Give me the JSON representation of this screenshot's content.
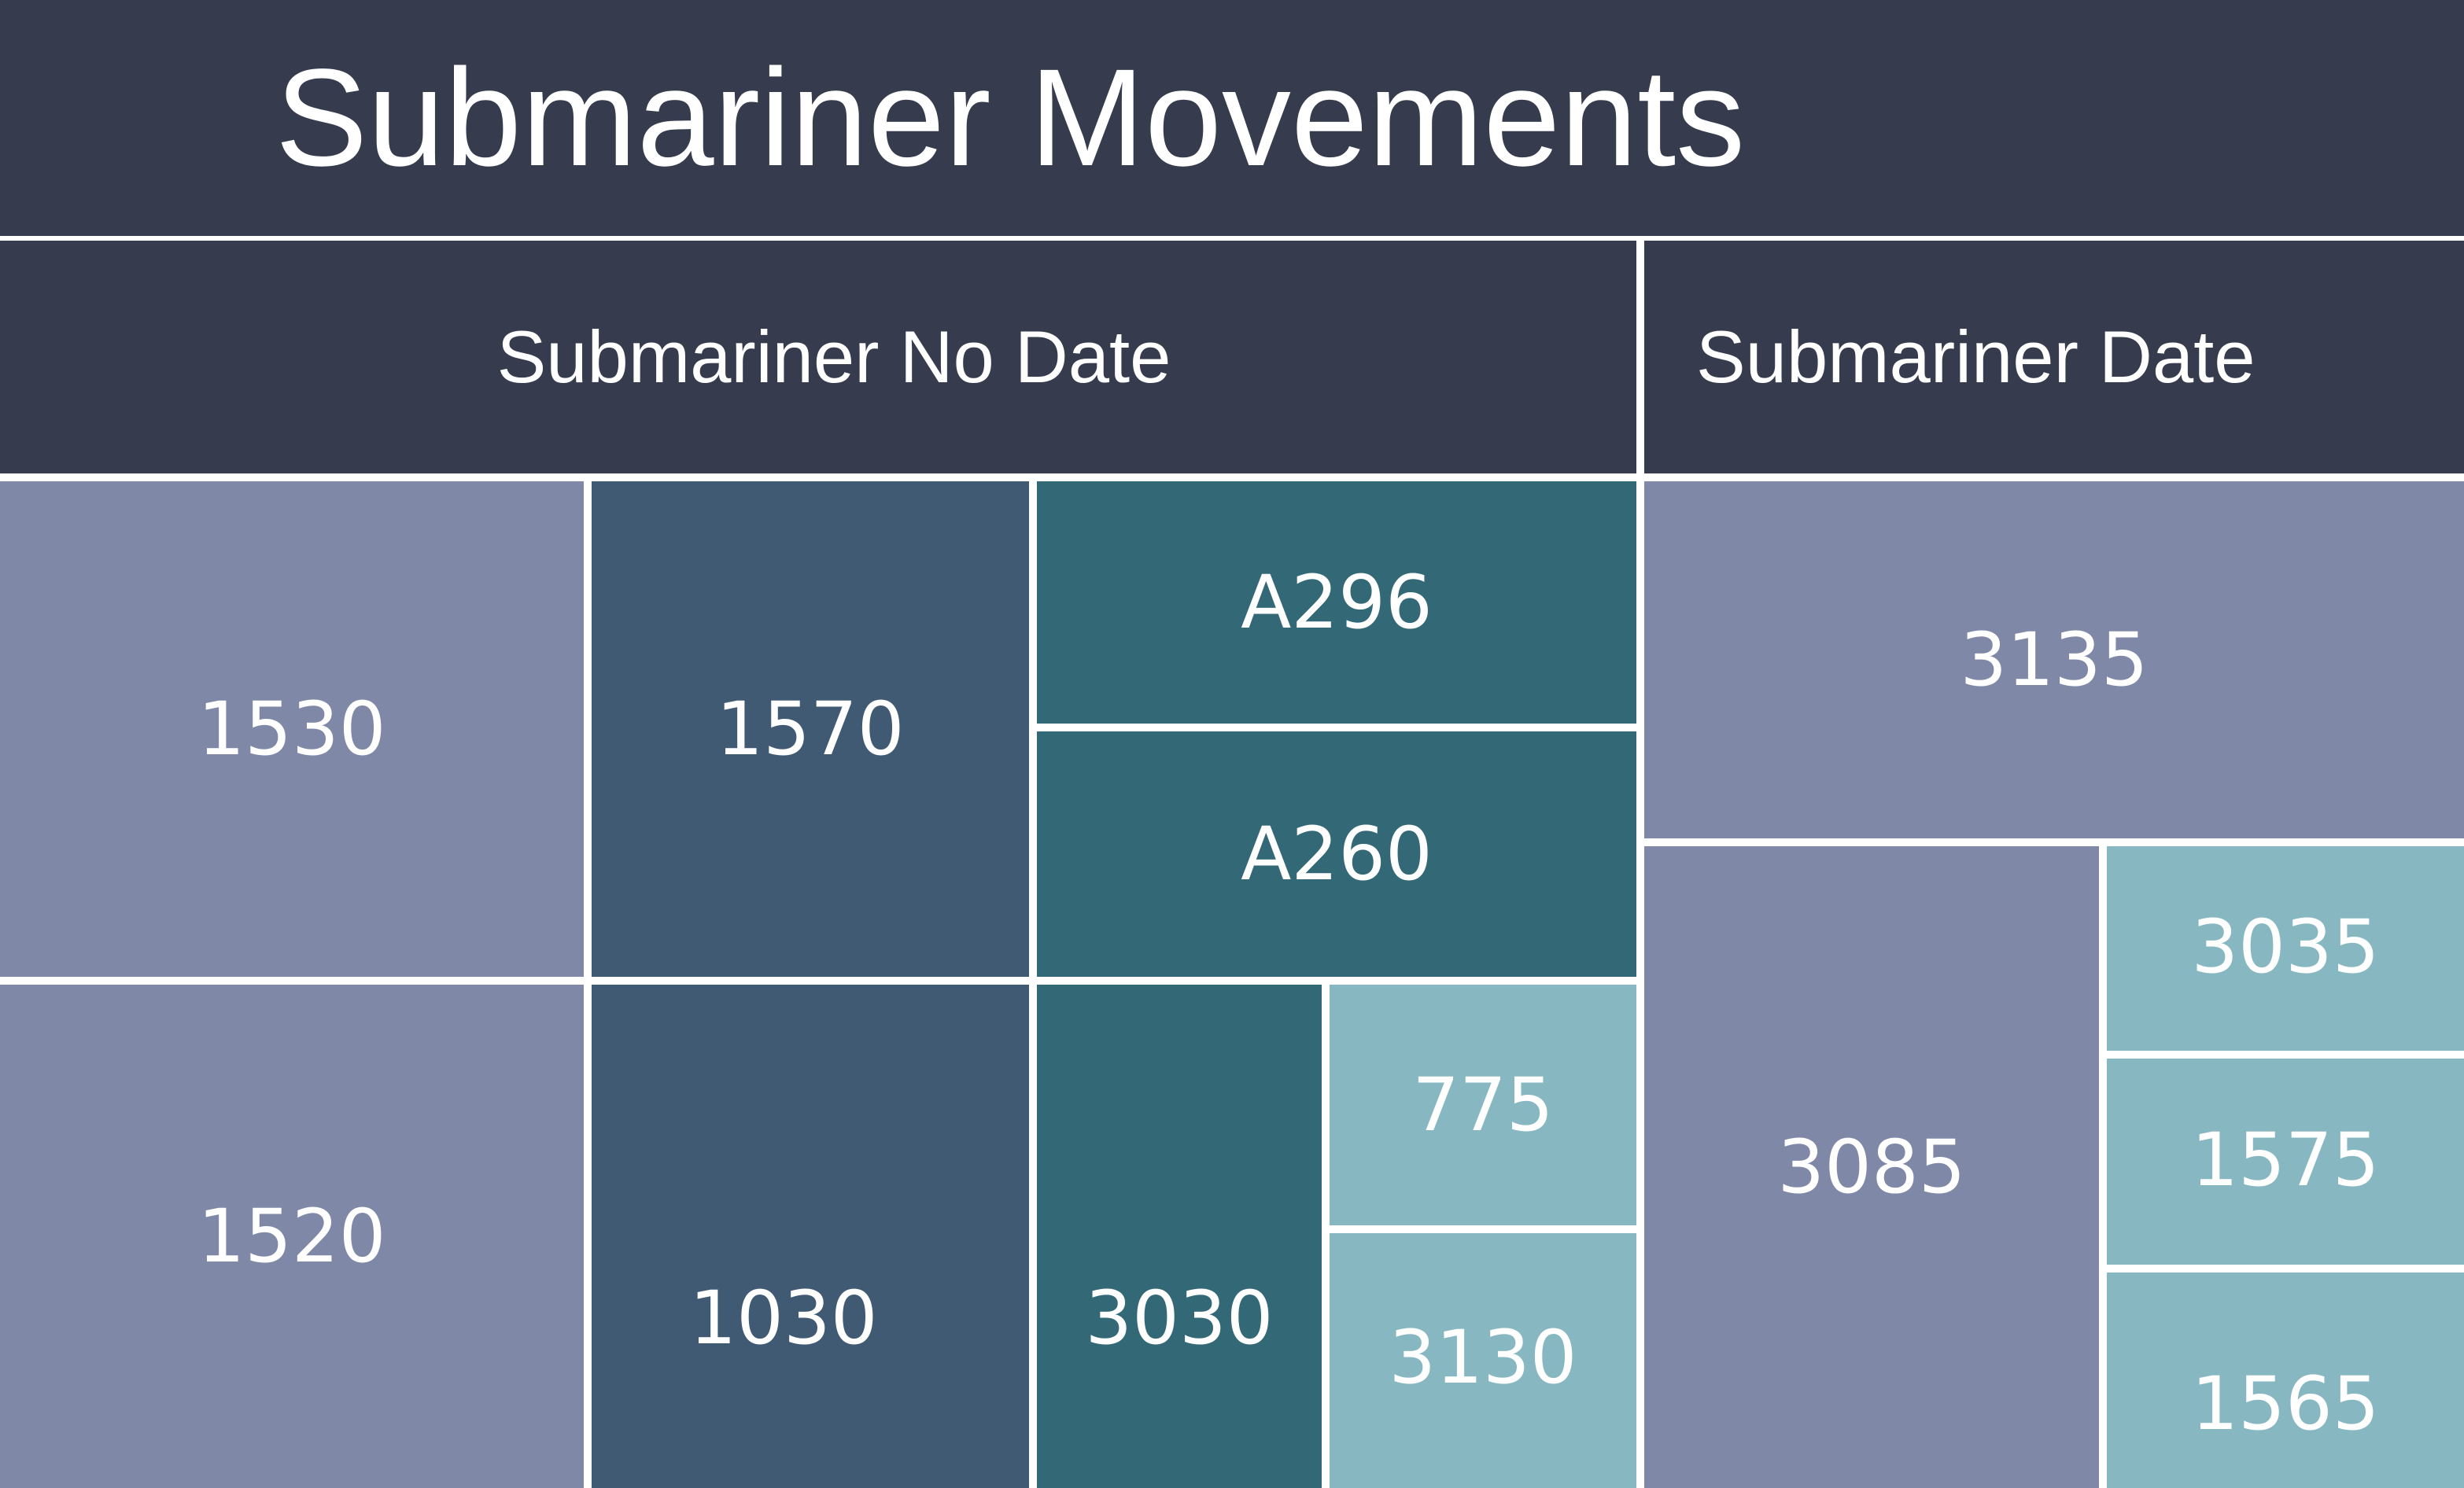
{
  "chart_data": {
    "type": "treemap",
    "title": "Submariner Movements",
    "groups": [
      {
        "name": "Submariner No Date",
        "items": [
          {
            "label": "1530",
            "color": "#7f88a6"
          },
          {
            "label": "1520",
            "color": "#7f88a6"
          },
          {
            "label": "1570",
            "color": "#415a74"
          },
          {
            "label": "1030",
            "color": "#415a74"
          },
          {
            "label": "A296",
            "color": "#336976"
          },
          {
            "label": "A260",
            "color": "#336976"
          },
          {
            "label": "3030",
            "color": "#336976"
          },
          {
            "label": "775",
            "color": "#87b8c1"
          },
          {
            "label": "3130",
            "color": "#87b8c1"
          }
        ]
      },
      {
        "name": "Submariner Date",
        "items": [
          {
            "label": "3135",
            "color": "#7f88a6"
          },
          {
            "label": "3085",
            "color": "#7f88a6"
          },
          {
            "label": "3035",
            "color": "#87b8c1"
          },
          {
            "label": "1575",
            "color": "#87b8c1"
          },
          {
            "label": "1565",
            "color": "#87b8c1"
          }
        ]
      }
    ]
  }
}
